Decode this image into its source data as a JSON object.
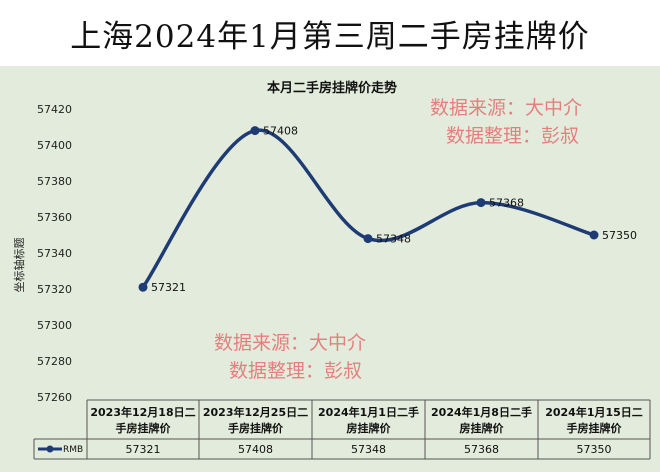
{
  "header": {
    "title": "上海2024年1月第三周二手房挂牌价"
  },
  "chart_data": {
    "type": "line",
    "title": "本月二手房挂牌价走势",
    "ylabel": "坐标轴标题",
    "xlabel": "",
    "ylim": [
      57260,
      57420
    ],
    "yticks": [
      57260,
      57280,
      57300,
      57320,
      57340,
      57360,
      57380,
      57400,
      57420
    ],
    "categories": [
      [
        "2023年12月18日二",
        "手房挂牌价"
      ],
      [
        "2023年12月25日二",
        "手房挂牌价"
      ],
      [
        "2024年1月1日二手",
        "房挂牌价"
      ],
      [
        "2024年1月8日二手",
        "房挂牌价"
      ],
      [
        "2024年1月15日二",
        "手房挂牌价"
      ]
    ],
    "series": [
      {
        "name": "RMB",
        "values": [
          57321,
          57408,
          57348,
          57368,
          57350
        ]
      }
    ],
    "data_labels": [
      "57321",
      "57408",
      "57348",
      "57368",
      "57350"
    ],
    "table_values": [
      "57321",
      "57408",
      "57348",
      "57368",
      "57350"
    ],
    "grid": false,
    "line_color": "#1f3b73",
    "background_color": "#e3ecdc"
  },
  "watermarks": [
    {
      "line1": "数据来源：大中介",
      "line2": "数据整理：彭叔"
    },
    {
      "line1": "数据来源：大中介",
      "line2": "数据整理：彭叔"
    }
  ]
}
